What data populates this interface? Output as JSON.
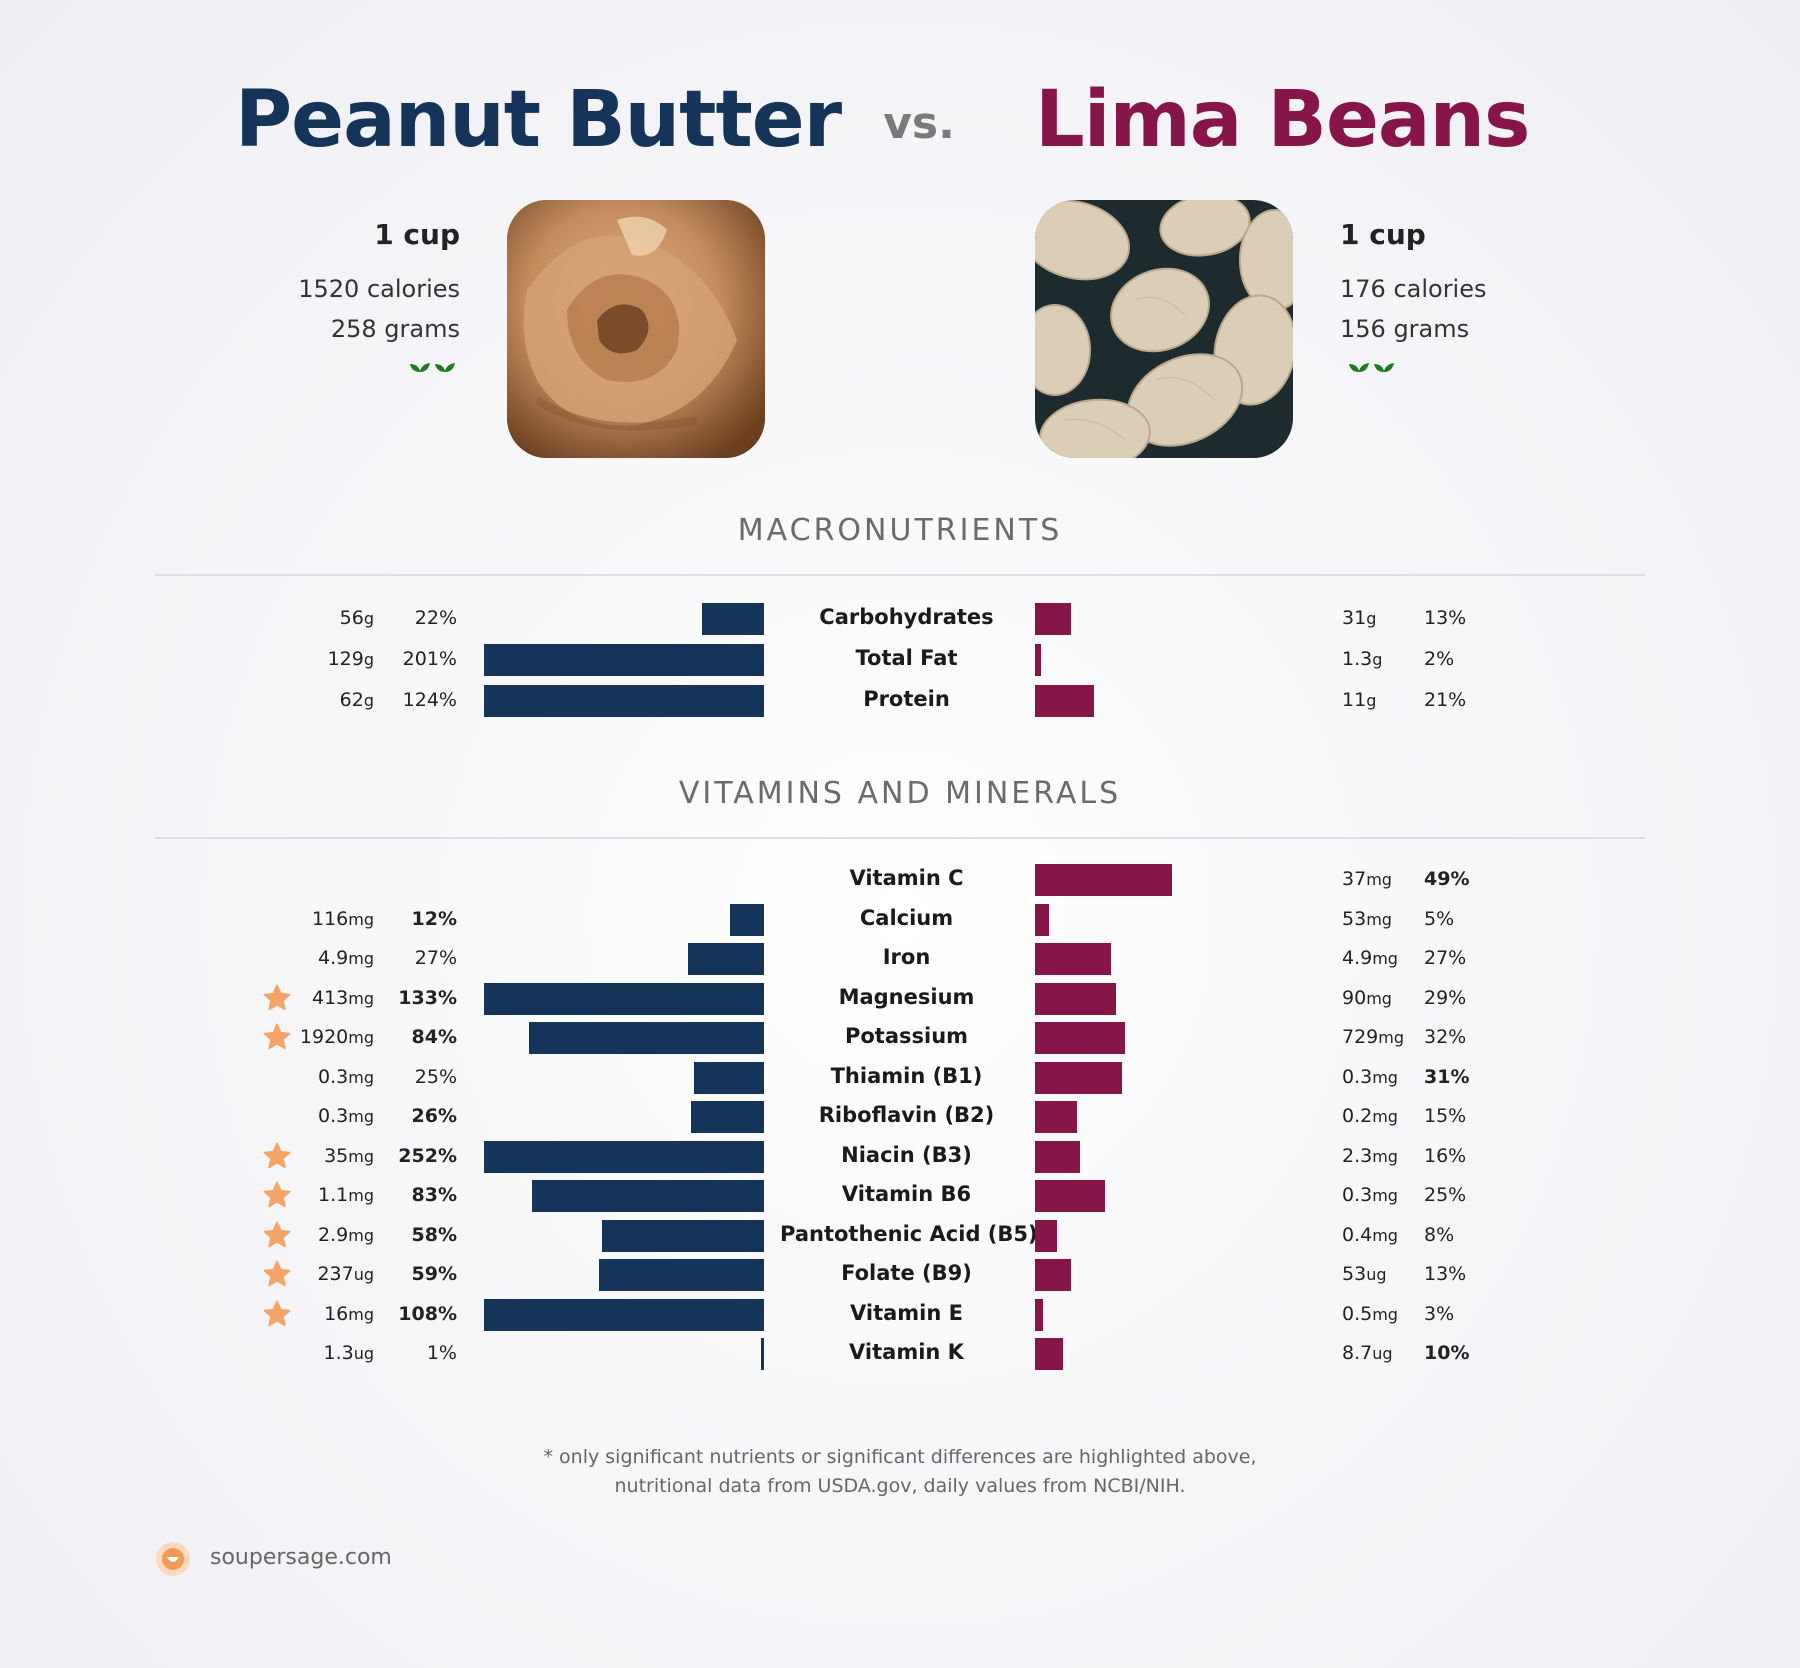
{
  "header": {
    "left_title": "Peanut Butter",
    "vs": "vs.",
    "right_title": "Lima Beans",
    "left_color": "#143459",
    "right_color": "#86164a"
  },
  "left_food": {
    "serving": "1 cup",
    "calories": "1520 calories",
    "grams": "258 grams",
    "icon": "vegan-sprouts-icon"
  },
  "right_food": {
    "serving": "1 cup",
    "calories": "176 calories",
    "grams": "156 grams",
    "icon": "vegan-sprouts-icon"
  },
  "sections": {
    "macros_title": "MACRONUTRIENTS",
    "vitamins_title": "VITAMINS AND MINERALS"
  },
  "footnote": {
    "line1": "* only significant nutrients or significant differences are highlighted above,",
    "line2": "nutritional data from USDA.gov, daily values from NCBI/NIH."
  },
  "brand": {
    "name": "soupersage.com"
  },
  "chart_data": [
    {
      "type": "bar",
      "title": "MACRONUTRIENTS",
      "bar_cap_percent": 100,
      "rows": [
        {
          "nutrient": "Carbohydrates",
          "left_amount": "56",
          "left_unit": "g",
          "left_pct": 22,
          "left_pct_label": "22%",
          "left_bold": false,
          "right_amount": "31",
          "right_unit": "g",
          "right_pct": 13,
          "right_pct_label": "13%",
          "right_bold": false,
          "star": false
        },
        {
          "nutrient": "Total Fat",
          "left_amount": "129",
          "left_unit": "g",
          "left_pct": 201,
          "left_pct_label": "201%",
          "left_bold": false,
          "right_amount": "1.3",
          "right_unit": "g",
          "right_pct": 2,
          "right_pct_label": "2%",
          "right_bold": false,
          "star": false
        },
        {
          "nutrient": "Protein",
          "left_amount": "62",
          "left_unit": "g",
          "left_pct": 124,
          "left_pct_label": "124%",
          "left_bold": false,
          "right_amount": "11",
          "right_unit": "g",
          "right_pct": 21,
          "right_pct_label": "21%",
          "right_bold": false,
          "star": false
        }
      ]
    },
    {
      "type": "bar",
      "title": "VITAMINS AND MINERALS",
      "bar_cap_percent": 100,
      "rows": [
        {
          "nutrient": "Vitamin C",
          "left_amount": "",
          "left_unit": "",
          "left_pct": 0,
          "left_pct_label": "",
          "left_bold": false,
          "right_amount": "37",
          "right_unit": "mg",
          "right_pct": 49,
          "right_pct_label": "49%",
          "right_bold": true,
          "star": false
        },
        {
          "nutrient": "Calcium",
          "left_amount": "116",
          "left_unit": "mg",
          "left_pct": 12,
          "left_pct_label": "12%",
          "left_bold": true,
          "right_amount": "53",
          "right_unit": "mg",
          "right_pct": 5,
          "right_pct_label": "5%",
          "right_bold": false,
          "star": false
        },
        {
          "nutrient": "Iron",
          "left_amount": "4.9",
          "left_unit": "mg",
          "left_pct": 27,
          "left_pct_label": "27%",
          "left_bold": false,
          "right_amount": "4.9",
          "right_unit": "mg",
          "right_pct": 27,
          "right_pct_label": "27%",
          "right_bold": false,
          "star": false
        },
        {
          "nutrient": "Magnesium",
          "left_amount": "413",
          "left_unit": "mg",
          "left_pct": 133,
          "left_pct_label": "133%",
          "left_bold": true,
          "right_amount": "90",
          "right_unit": "mg",
          "right_pct": 29,
          "right_pct_label": "29%",
          "right_bold": false,
          "star": true
        },
        {
          "nutrient": "Potassium",
          "left_amount": "1920",
          "left_unit": "mg",
          "left_pct": 84,
          "left_pct_label": "84%",
          "left_bold": true,
          "right_amount": "729",
          "right_unit": "mg",
          "right_pct": 32,
          "right_pct_label": "32%",
          "right_bold": false,
          "star": true
        },
        {
          "nutrient": "Thiamin (B1)",
          "left_amount": "0.3",
          "left_unit": "mg",
          "left_pct": 25,
          "left_pct_label": "25%",
          "left_bold": false,
          "right_amount": "0.3",
          "right_unit": "mg",
          "right_pct": 31,
          "right_pct_label": "31%",
          "right_bold": true,
          "star": false
        },
        {
          "nutrient": "Riboflavin (B2)",
          "left_amount": "0.3",
          "left_unit": "mg",
          "left_pct": 26,
          "left_pct_label": "26%",
          "left_bold": true,
          "right_amount": "0.2",
          "right_unit": "mg",
          "right_pct": 15,
          "right_pct_label": "15%",
          "right_bold": false,
          "star": false
        },
        {
          "nutrient": "Niacin (B3)",
          "left_amount": "35",
          "left_unit": "mg",
          "left_pct": 252,
          "left_pct_label": "252%",
          "left_bold": true,
          "right_amount": "2.3",
          "right_unit": "mg",
          "right_pct": 16,
          "right_pct_label": "16%",
          "right_bold": false,
          "star": true
        },
        {
          "nutrient": "Vitamin B6",
          "left_amount": "1.1",
          "left_unit": "mg",
          "left_pct": 83,
          "left_pct_label": "83%",
          "left_bold": true,
          "right_amount": "0.3",
          "right_unit": "mg",
          "right_pct": 25,
          "right_pct_label": "25%",
          "right_bold": false,
          "star": true
        },
        {
          "nutrient": "Pantothenic Acid (B5)",
          "left_amount": "2.9",
          "left_unit": "mg",
          "left_pct": 58,
          "left_pct_label": "58%",
          "left_bold": true,
          "right_amount": "0.4",
          "right_unit": "mg",
          "right_pct": 8,
          "right_pct_label": "8%",
          "right_bold": false,
          "star": true
        },
        {
          "nutrient": "Folate (B9)",
          "left_amount": "237",
          "left_unit": "ug",
          "left_pct": 59,
          "left_pct_label": "59%",
          "left_bold": true,
          "right_amount": "53",
          "right_unit": "ug",
          "right_pct": 13,
          "right_pct_label": "13%",
          "right_bold": false,
          "star": true
        },
        {
          "nutrient": "Vitamin E",
          "left_amount": "16",
          "left_unit": "mg",
          "left_pct": 108,
          "left_pct_label": "108%",
          "left_bold": true,
          "right_amount": "0.5",
          "right_unit": "mg",
          "right_pct": 3,
          "right_pct_label": "3%",
          "right_bold": false,
          "star": true
        },
        {
          "nutrient": "Vitamin K",
          "left_amount": "1.3",
          "left_unit": "ug",
          "left_pct": 1,
          "left_pct_label": "1%",
          "left_bold": false,
          "right_amount": "8.7",
          "right_unit": "ug",
          "right_pct": 10,
          "right_pct_label": "10%",
          "right_bold": true,
          "star": false
        }
      ]
    }
  ]
}
